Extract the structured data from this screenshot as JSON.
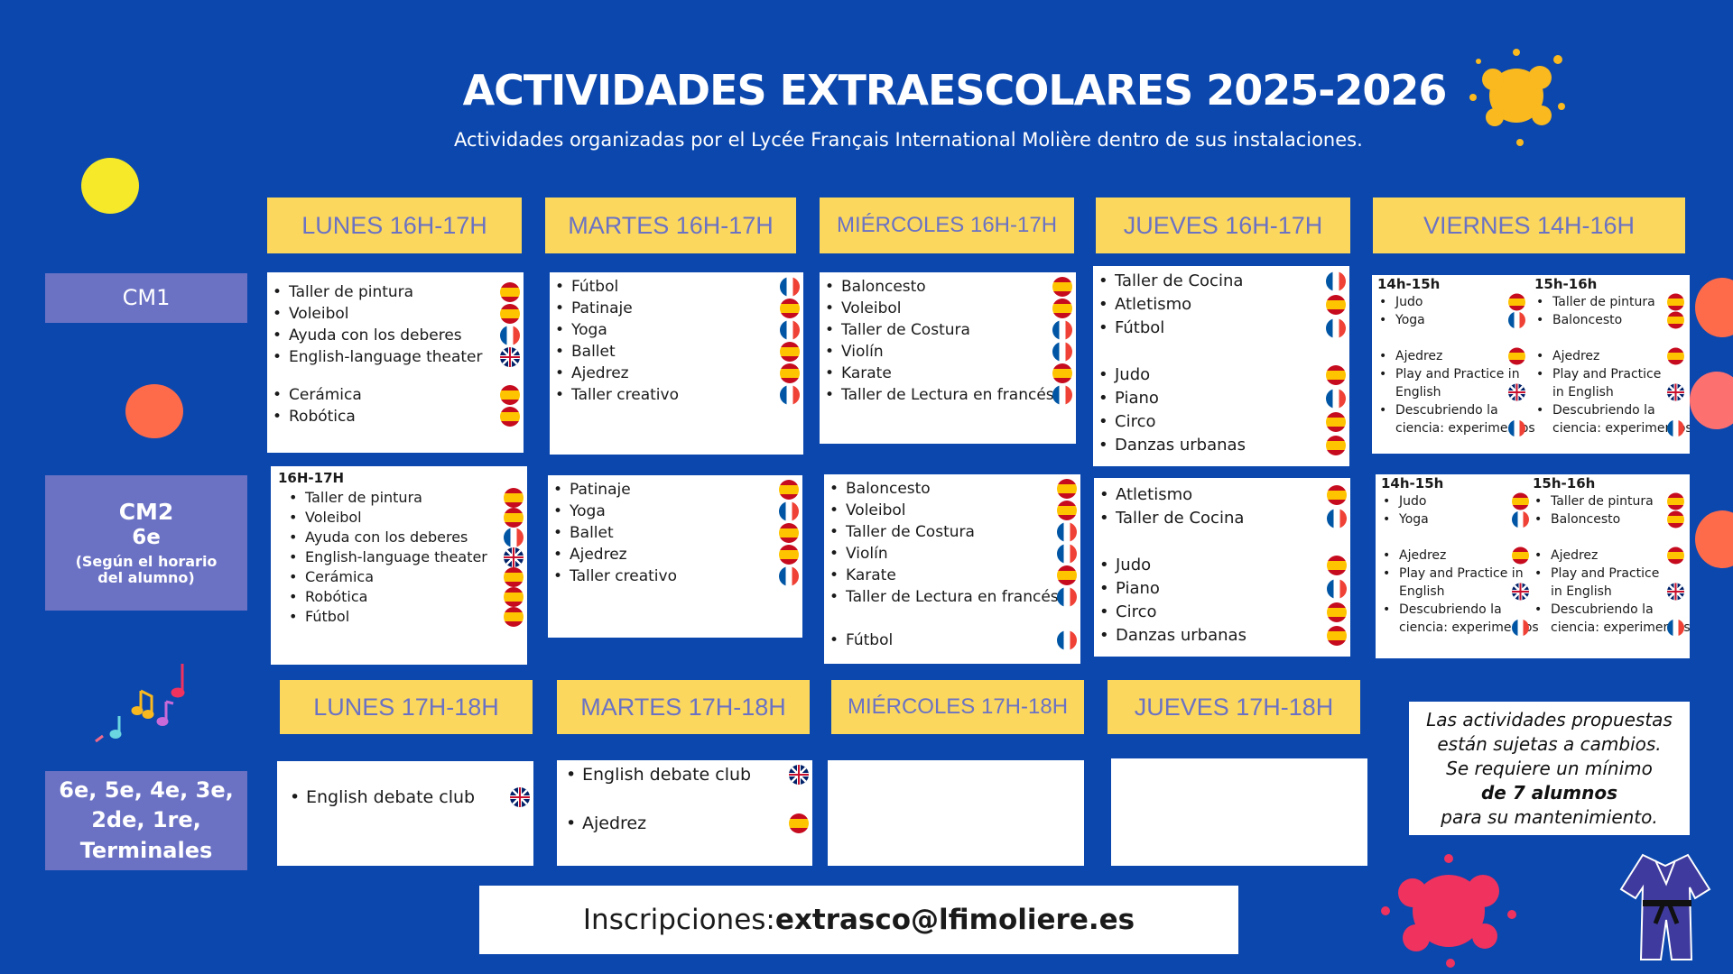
{
  "header": {
    "title": "ACTIVIDADES EXTRAESCOLARES  2025-2026",
    "subtitle": "Actividades organizadas por el Lycée Français International Molière dentro de sus instalaciones."
  },
  "days_top": [
    "LUNES 16H-17H",
    "MARTES 16H-17H",
    "MIÉRCOLES 16H-17H",
    "JUEVES 16H-17H",
    "VIERNES 14H-16H"
  ],
  "days_bottom": [
    "LUNES 17H-18H",
    "MARTES 17H-18H",
    "MIÉRCOLES 17H-18H",
    "JUEVES 17H-18H"
  ],
  "levels": {
    "cm1": "CM1",
    "cm2_a": "CM2",
    "cm2_b": "6e",
    "cm2_c": "(Según el horario",
    "cm2_d": "del alumno)",
    "sec_a": "6e, 5e, 4e, 3e,",
    "sec_b": "2de, 1re,",
    "sec_c": "Terminales"
  },
  "cm1": {
    "lunes": [
      {
        "t": "Taller de pintura",
        "f": "es"
      },
      {
        "t": "Voleibol",
        "f": "es"
      },
      {
        "t": "Ayuda con los deberes",
        "f": "fr"
      },
      {
        "t": "English-language theater",
        "f": "gb"
      },
      {
        "t": "Cerámica",
        "f": "es"
      },
      {
        "t": "Robótica",
        "f": "es"
      }
    ],
    "martes": [
      {
        "t": "Fútbol",
        "f": "fr"
      },
      {
        "t": "Patinaje",
        "f": "es"
      },
      {
        "t": "Yoga",
        "f": "fr"
      },
      {
        "t": "Ballet",
        "f": "es"
      },
      {
        "t": "Ajedrez",
        "f": "es"
      },
      {
        "t": "Taller creativo",
        "f": "fr"
      }
    ],
    "miercoles": [
      {
        "t": "Baloncesto",
        "f": "es"
      },
      {
        "t": "Voleibol",
        "f": "es"
      },
      {
        "t": "Taller de Costura",
        "f": "fr"
      },
      {
        "t": "Violín",
        "f": "fr"
      },
      {
        "t": "Karate",
        "f": "es"
      },
      {
        "t": "Taller de Lectura en francés",
        "f": "fr"
      }
    ],
    "jueves": [
      {
        "t": "Taller de Cocina",
        "f": "fr"
      },
      {
        "t": "Atletismo",
        "f": "es"
      },
      {
        "t": "Fútbol",
        "f": "fr"
      },
      {
        "t": "Judo",
        "f": "es"
      },
      {
        "t": "Piano",
        "f": "fr"
      },
      {
        "t": "Circo",
        "f": "es"
      },
      {
        "t": "Danzas urbanas",
        "f": "es"
      }
    ],
    "viernes": {
      "h1": "14h-15h",
      "h2": "15h-16h",
      "c1": [
        {
          "t": "Judo",
          "f": "es"
        },
        {
          "t": "Yoga",
          "f": "fr"
        },
        {
          "t": "Ajedrez",
          "f": "es"
        },
        {
          "t": "Play and Practice in",
          "f": ""
        },
        {
          "t": "English",
          "f": "gb",
          "noBullet": true
        },
        {
          "t": "Descubriendo la",
          "f": ""
        },
        {
          "t": "ciencia: experimentos",
          "f": "fr",
          "noBullet": true
        }
      ],
      "c2": [
        {
          "t": "Taller de pintura",
          "f": "es"
        },
        {
          "t": "Baloncesto",
          "f": "es"
        },
        {
          "t": "Ajedrez",
          "f": "es"
        },
        {
          "t": "Play and Practice",
          "f": ""
        },
        {
          "t": "in English",
          "f": "gb",
          "noBullet": true
        },
        {
          "t": "Descubriendo la",
          "f": ""
        },
        {
          "t": "ciencia: experimentos",
          "f": "fr",
          "noBullet": true
        }
      ]
    }
  },
  "cm2": {
    "lunes_hour": "16H-17H",
    "lunes": [
      {
        "t": "Taller de pintura",
        "f": "es"
      },
      {
        "t": "Voleibol",
        "f": "es"
      },
      {
        "t": "Ayuda con los deberes",
        "f": "fr"
      },
      {
        "t": "English-language theater",
        "f": "gb"
      },
      {
        "t": "Cerámica",
        "f": "es"
      },
      {
        "t": "Robótica",
        "f": "es"
      },
      {
        "t": "Fútbol",
        "f": "es"
      }
    ],
    "martes": [
      {
        "t": "Patinaje",
        "f": "es"
      },
      {
        "t": "Yoga",
        "f": "fr"
      },
      {
        "t": "Ballet",
        "f": "es"
      },
      {
        "t": "Ajedrez",
        "f": "es"
      },
      {
        "t": "Taller creativo",
        "f": "fr"
      }
    ],
    "miercoles": [
      {
        "t": "Baloncesto",
        "f": "es"
      },
      {
        "t": "Voleibol",
        "f": "es"
      },
      {
        "t": "Taller de Costura",
        "f": "fr"
      },
      {
        "t": "Violín",
        "f": "fr"
      },
      {
        "t": "Karate",
        "f": "es"
      },
      {
        "t": "Taller de Lectura en francés",
        "f": "fr"
      },
      {
        "t": "Fútbol",
        "f": "fr"
      }
    ],
    "jueves": [
      {
        "t": "Atletismo",
        "f": "es"
      },
      {
        "t": "Taller de Cocina",
        "f": "fr"
      },
      {
        "t": "Judo",
        "f": "es"
      },
      {
        "t": "Piano",
        "f": "fr"
      },
      {
        "t": "Circo",
        "f": "es"
      },
      {
        "t": "Danzas urbanas",
        "f": "es"
      }
    ],
    "viernes": {
      "h1": "14h-15h",
      "h2": "15h-16h",
      "c1": [
        {
          "t": "Judo",
          "f": "es"
        },
        {
          "t": "Yoga",
          "f": "fr"
        },
        {
          "t": "Ajedrez",
          "f": "es"
        },
        {
          "t": "Play and Practice in",
          "f": ""
        },
        {
          "t": "English",
          "f": "gb",
          "noBullet": true
        },
        {
          "t": "Descubriendo la",
          "f": ""
        },
        {
          "t": "ciencia: experimentos",
          "f": "fr",
          "noBullet": true
        }
      ],
      "c2": [
        {
          "t": "Taller de pintura",
          "f": "es"
        },
        {
          "t": "Baloncesto",
          "f": "es"
        },
        {
          "t": "Ajedrez",
          "f": "es"
        },
        {
          "t": "Play and Practice",
          "f": ""
        },
        {
          "t": "in English",
          "f": "gb",
          "noBullet": true
        },
        {
          "t": "Descubriendo la",
          "f": ""
        },
        {
          "t": "ciencia: experimentos",
          "f": "fr",
          "noBullet": true
        }
      ]
    }
  },
  "secondary": {
    "lunes": [
      {
        "t": "English debate club",
        "f": "gb"
      }
    ],
    "martes": [
      {
        "t": "English debate club",
        "f": "gb"
      },
      {
        "t": "Ajedrez",
        "f": "es"
      }
    ]
  },
  "notice": {
    "l1": "Las actividades propuestas",
    "l2": "están sujetas a cambios.",
    "l3": "Se requiere un mínimo",
    "l4": "de 7 alumnos",
    "l5": "para su mantenimiento."
  },
  "footer": {
    "label": "Inscripciones: ",
    "email": "extrasco@lfimoliere.es"
  },
  "colors": {
    "background": "#0b47ad",
    "header_yellow": "#fbd85d",
    "level_purple": "#6b72c4"
  }
}
